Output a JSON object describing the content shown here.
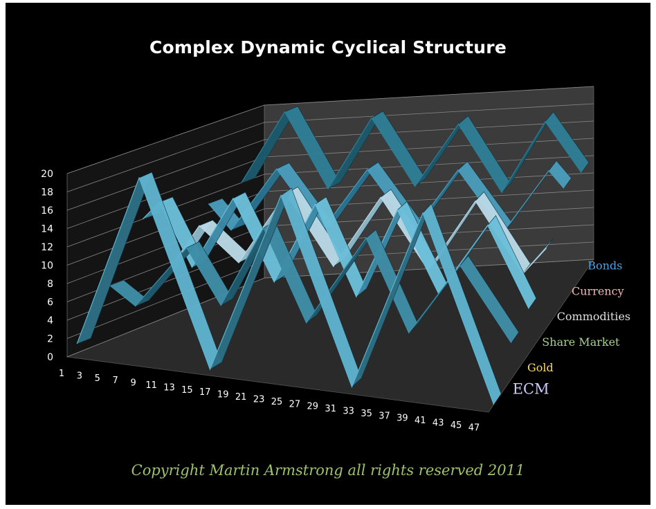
{
  "chart_data": {
    "type": "3d-line",
    "title": "Complex Dynamic Cyclical Structure",
    "x_ticks": [
      "1",
      "3",
      "5",
      "7",
      "9",
      "11",
      "13",
      "15",
      "17",
      "19",
      "21",
      "23",
      "25",
      "27",
      "29",
      "31",
      "33",
      "35",
      "37",
      "39",
      "41",
      "43",
      "45",
      "47"
    ],
    "ylim": [
      0,
      20
    ],
    "y_ticks": [
      0,
      2,
      4,
      6,
      8,
      10,
      12,
      14,
      16,
      18,
      20
    ],
    "grid": true,
    "series": [
      {
        "name": "ECM",
        "color": "#ccccff",
        "points": [
          [
            1,
            1
          ],
          [
            8,
            20
          ],
          [
            16,
            0
          ],
          [
            24,
            20
          ],
          [
            32,
            0
          ],
          [
            40,
            20
          ],
          [
            48,
            0
          ]
        ]
      },
      {
        "name": "Gold",
        "color": "#ffd966",
        "points": [
          [
            1,
            6
          ],
          [
            4,
            4
          ],
          [
            10,
            11
          ],
          [
            14,
            5
          ],
          [
            19,
            14
          ],
          [
            24,
            4
          ],
          [
            31,
            14
          ],
          [
            36,
            4
          ],
          [
            42,
            12
          ],
          [
            48,
            4
          ]
        ]
      },
      {
        "name": "Share Market",
        "color": "#a9d18e",
        "points": [
          [
            1,
            12
          ],
          [
            3,
            14
          ],
          [
            7,
            7
          ],
          [
            12,
            15
          ],
          [
            17,
            6
          ],
          [
            22,
            15
          ],
          [
            27,
            5
          ],
          [
            32,
            15
          ],
          [
            37,
            6
          ],
          [
            43,
            14
          ],
          [
            48,
            5
          ]
        ]
      },
      {
        "name": "Commodities",
        "color": "#e0e0e0",
        "points": [
          [
            1,
            6
          ],
          [
            4,
            10
          ],
          [
            9,
            6
          ],
          [
            15,
            14
          ],
          [
            21,
            6
          ],
          [
            27,
            14
          ],
          [
            33,
            6
          ],
          [
            39,
            14
          ],
          [
            45,
            6
          ],
          [
            48,
            9
          ]
        ]
      },
      {
        "name": "Currency",
        "color": "#f4b6b6",
        "points": [
          [
            1,
            11
          ],
          [
            4,
            8
          ],
          [
            10,
            15
          ],
          [
            16,
            8
          ],
          [
            22,
            15
          ],
          [
            28,
            8
          ],
          [
            34,
            15
          ],
          [
            40,
            8
          ],
          [
            46,
            15
          ],
          [
            48,
            13
          ]
        ]
      },
      {
        "name": "Bonds",
        "color": "#4fa3e0",
        "points": [
          [
            1,
            12
          ],
          [
            7,
            20
          ],
          [
            13,
            11
          ],
          [
            19,
            19
          ],
          [
            25,
            11
          ],
          [
            31,
            18
          ],
          [
            37,
            10
          ],
          [
            43,
            18
          ],
          [
            48,
            12
          ]
        ]
      }
    ]
  },
  "copyright": {
    "text": "Copyright Martin Armstrong all rights reserved 2011",
    "color": "#9dc36b"
  }
}
